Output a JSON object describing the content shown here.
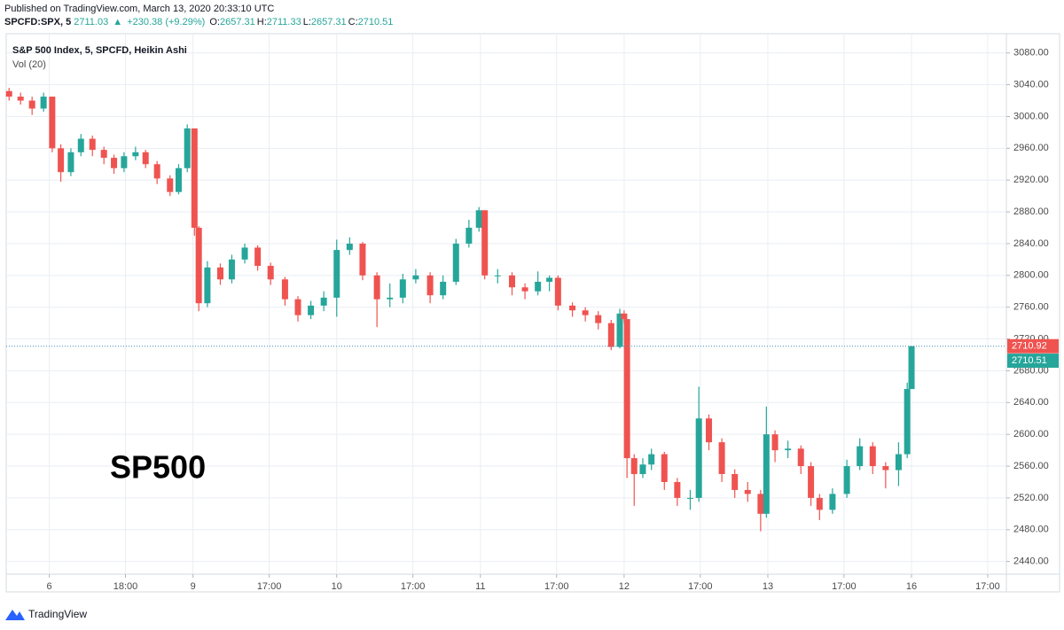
{
  "header": {
    "published": "Published on TradingView.com, March 13, 2020 20:33:10 UTC",
    "symbol": "SPCFD:SPX, 5",
    "last": "2711.03",
    "arrow": "▲",
    "change": "+230.38 (+9.29%)",
    "ohlc": [
      {
        "label": "O:",
        "value": "2657.31"
      },
      {
        "label": "H:",
        "value": "2711.33"
      },
      {
        "label": "L:",
        "value": "2657.31"
      },
      {
        "label": "C:",
        "value": "2710.51"
      }
    ]
  },
  "chart_data": {
    "type": "candlestick",
    "title": "S&P 500 Index, 5, SPCFD, Heikin Ashi",
    "subtitle": "Vol (20)",
    "annotation": "SP500",
    "up_color": "#26a69a",
    "down_color": "#ef5350",
    "grid": true,
    "x": [
      0.72,
      0.8,
      0.88,
      0.96,
      1.02,
      1.08,
      1.15,
      1.22,
      1.3,
      1.38,
      1.45,
      1.52,
      1.6,
      1.67,
      1.75,
      1.84,
      1.9,
      1.96,
      2.01,
      2.04,
      2.1,
      2.19,
      2.27,
      2.36,
      2.45,
      2.54,
      2.64,
      2.73,
      2.82,
      2.91,
      3.0,
      3.09,
      3.18,
      3.28,
      3.37,
      3.46,
      3.55,
      3.65,
      3.74,
      3.83,
      3.92,
      3.99,
      4.03,
      4.12,
      4.22,
      4.31,
      4.4,
      4.48,
      4.54,
      4.64,
      4.73,
      4.82,
      4.91,
      4.97,
      5.0,
      5.02,
      5.07,
      5.13,
      5.19,
      5.28,
      5.37,
      5.46,
      5.52,
      5.59,
      5.68,
      5.77,
      5.86,
      5.95,
      5.99,
      6.05,
      6.14,
      6.23,
      6.3,
      6.36,
      6.45,
      6.55,
      6.64,
      6.73,
      6.82,
      6.91,
      6.97,
      7.0
    ],
    "open": [
      3032,
      3025,
      3020,
      3010,
      3025,
      2960,
      2930,
      2955,
      2972,
      2958,
      2948,
      2935,
      2950,
      2955,
      2940,
      2922,
      2905,
      2935,
      2985,
      2860,
      2765,
      2810,
      2795,
      2820,
      2835,
      2812,
      2795,
      2770,
      2750,
      2762,
      2772,
      2832,
      2840,
      2800,
      2770,
      2772,
      2795,
      2800,
      2775,
      2792,
      2840,
      2860,
      2882,
      2800,
      2800,
      2785,
      2780,
      2792,
      2797,
      2762,
      2756,
      2750,
      2740,
      2710,
      2752,
      2745,
      2570,
      2550,
      2562,
      2575,
      2540,
      2520,
      2520,
      2620,
      2590,
      2550,
      2530,
      2525,
      2500,
      2600,
      2580,
      2582,
      2560,
      2520,
      2505,
      2525,
      2560,
      2585,
      2560,
      2555,
      2575,
      2657
    ],
    "close": [
      3025,
      3020,
      3010,
      3025,
      2960,
      2930,
      2955,
      2972,
      2958,
      2948,
      2935,
      2950,
      2955,
      2940,
      2922,
      2905,
      2935,
      2985,
      2860,
      2765,
      2810,
      2795,
      2820,
      2835,
      2812,
      2795,
      2770,
      2750,
      2762,
      2772,
      2832,
      2840,
      2800,
      2770,
      2772,
      2795,
      2800,
      2775,
      2792,
      2840,
      2860,
      2882,
      2800,
      2800,
      2785,
      2780,
      2792,
      2797,
      2762,
      2756,
      2750,
      2740,
      2710,
      2752,
      2745,
      2570,
      2550,
      2562,
      2575,
      2540,
      2520,
      2520,
      2620,
      2590,
      2550,
      2530,
      2525,
      2500,
      2600,
      2580,
      2582,
      2560,
      2520,
      2505,
      2525,
      2560,
      2585,
      2560,
      2555,
      2575,
      2657,
      2711
    ],
    "high": [
      3036,
      3030,
      3025,
      3030,
      3025,
      2965,
      2960,
      2978,
      2976,
      2962,
      2952,
      2955,
      2962,
      2958,
      2944,
      2926,
      2940,
      2990,
      2985,
      2862,
      2818,
      2815,
      2826,
      2840,
      2838,
      2816,
      2798,
      2774,
      2768,
      2780,
      2845,
      2848,
      2842,
      2804,
      2790,
      2802,
      2808,
      2804,
      2800,
      2846,
      2870,
      2886,
      2882,
      2808,
      2804,
      2790,
      2805,
      2800,
      2800,
      2766,
      2760,
      2755,
      2744,
      2758,
      2756,
      2745,
      2575,
      2570,
      2582,
      2578,
      2545,
      2530,
      2660,
      2625,
      2595,
      2556,
      2540,
      2530,
      2635,
      2605,
      2592,
      2586,
      2565,
      2525,
      2532,
      2568,
      2595,
      2590,
      2565,
      2590,
      2665,
      2711
    ],
    "low": [
      3020,
      3015,
      3002,
      3006,
      2955,
      2918,
      2925,
      2950,
      2950,
      2940,
      2928,
      2930,
      2945,
      2935,
      2915,
      2900,
      2902,
      2930,
      2850,
      2755,
      2760,
      2788,
      2790,
      2815,
      2806,
      2788,
      2762,
      2742,
      2745,
      2755,
      2748,
      2826,
      2794,
      2735,
      2760,
      2765,
      2790,
      2765,
      2770,
      2788,
      2835,
      2855,
      2795,
      2790,
      2775,
      2770,
      2775,
      2780,
      2756,
      2748,
      2742,
      2732,
      2706,
      2708,
      2740,
      2545,
      2510,
      2545,
      2555,
      2530,
      2510,
      2505,
      2515,
      2580,
      2540,
      2520,
      2515,
      2478,
      2495,
      2565,
      2570,
      2550,
      2510,
      2492,
      2500,
      2520,
      2555,
      2550,
      2532,
      2535,
      2570,
      2657
    ],
    "xlim": [
      0.7,
      7.66
    ],
    "xticks": [
      {
        "value": 1,
        "label": "6"
      },
      {
        "value": 1.53,
        "label": "18:00"
      },
      {
        "value": 2,
        "label": "9"
      },
      {
        "value": 2.53,
        "label": "17:00"
      },
      {
        "value": 3,
        "label": "10"
      },
      {
        "value": 3.53,
        "label": "17:00"
      },
      {
        "value": 4,
        "label": "11"
      },
      {
        "value": 4.53,
        "label": "17:00"
      },
      {
        "value": 5,
        "label": "12"
      },
      {
        "value": 5.53,
        "label": "17:00"
      },
      {
        "value": 6,
        "label": "13"
      },
      {
        "value": 6.53,
        "label": "17:00"
      },
      {
        "value": 7,
        "label": "16"
      },
      {
        "value": 7.53,
        "label": "17:00"
      }
    ],
    "ylim": [
      2424,
      3102
    ],
    "yticks": [
      {
        "value": 2440,
        "label": "2440.00"
      },
      {
        "value": 2480,
        "label": "2480.00"
      },
      {
        "value": 2520,
        "label": "2520.00"
      },
      {
        "value": 2560,
        "label": "2560.00"
      },
      {
        "value": 2600,
        "label": "2600.00"
      },
      {
        "value": 2640,
        "label": "2640.00"
      },
      {
        "value": 2680,
        "label": "2680.00"
      },
      {
        "value": 2720,
        "label": "2720.00"
      },
      {
        "value": 2760,
        "label": "2760.00"
      },
      {
        "value": 2800,
        "label": "2800.00"
      },
      {
        "value": 2840,
        "label": "2840.00"
      },
      {
        "value": 2880,
        "label": "2880.00"
      },
      {
        "value": 2920,
        "label": "2920.00"
      },
      {
        "value": 2960,
        "label": "2960.00"
      },
      {
        "value": 3000,
        "label": "3000.00"
      },
      {
        "value": 3040,
        "label": "3040.00"
      },
      {
        "value": 3080,
        "label": "3080.00"
      }
    ],
    "price_labels": [
      {
        "value": 2710.92,
        "label": "2710.92",
        "color": "#ef5350"
      },
      {
        "value": 2710.51,
        "label": "2710.51",
        "color": "#26a69a"
      }
    ]
  },
  "footer": {
    "brand": "TradingView"
  }
}
